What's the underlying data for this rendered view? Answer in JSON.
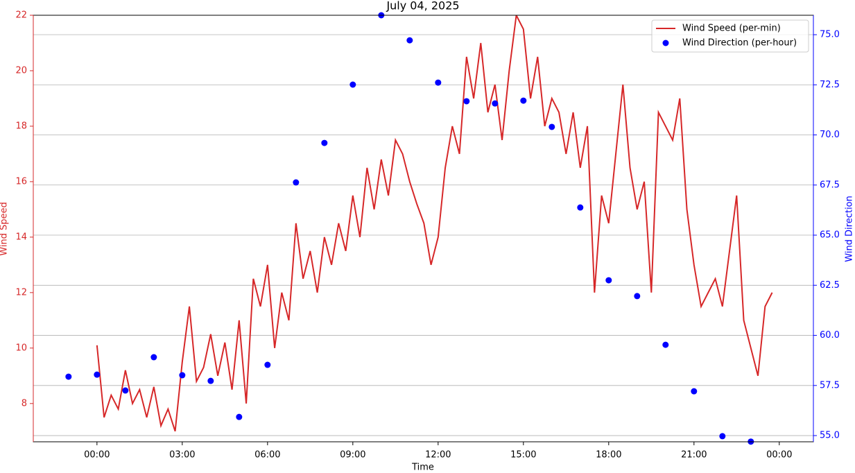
{
  "chart_data": {
    "type": "line",
    "title": "July 04, 2025",
    "x_label": "Time",
    "y_label": "Wind Speed",
    "y2_label": "Wind Direction",
    "xlim": [
      -2.24,
      25.2
    ],
    "xticks": [
      {
        "value": 0,
        "label": "00:00"
      },
      {
        "value": 3,
        "label": "03:00"
      },
      {
        "value": 6,
        "label": "06:00"
      },
      {
        "value": 9,
        "label": "09:00"
      },
      {
        "value": 12,
        "label": "12:00"
      },
      {
        "value": 15,
        "label": "15:00"
      },
      {
        "value": 18,
        "label": "18:00"
      },
      {
        "value": 21,
        "label": "21:00"
      },
      {
        "value": 24,
        "label": "00:00"
      }
    ],
    "ylim": [
      6.62,
      22
    ],
    "yticks": [
      8,
      10,
      12,
      14,
      16,
      18,
      20,
      22
    ],
    "y2lim": [
      54.69,
      75.97
    ],
    "y2ticks": [
      {
        "value": 55,
        "label": "55.0"
      },
      {
        "value": 57.5,
        "label": "57.5"
      },
      {
        "value": 60,
        "label": "60.0"
      },
      {
        "value": 62.5,
        "label": "62.5"
      },
      {
        "value": 65,
        "label": "65.0"
      },
      {
        "value": 67.5,
        "label": "67.5"
      },
      {
        "value": 70,
        "label": "70.0"
      },
      {
        "value": 72.5,
        "label": "72.5"
      },
      {
        "value": 75,
        "label": "75.0"
      }
    ],
    "grid": "y2",
    "legend": "upper right",
    "series": [
      {
        "name": "Wind Speed (per-min)",
        "color": "#d62728",
        "marker": "line",
        "x": [
          0,
          0.25,
          0.5,
          0.75,
          1,
          1.25,
          1.5,
          1.75,
          2,
          2.25,
          2.5,
          2.75,
          3,
          3.25,
          3.5,
          3.75,
          4,
          4.25,
          4.5,
          4.75,
          5,
          5.25,
          5.5,
          5.75,
          6,
          6.25,
          6.5,
          6.75,
          7,
          7.25,
          7.5,
          7.75,
          8,
          8.25,
          8.5,
          8.75,
          9,
          9.25,
          9.5,
          9.75,
          10,
          10.25,
          10.5,
          10.75,
          11,
          11.25,
          11.5,
          11.75,
          12,
          12.25,
          12.5,
          12.75,
          13,
          13.25,
          13.5,
          13.75,
          14,
          14.25,
          14.5,
          14.75,
          15,
          15.25,
          15.5,
          15.75,
          16,
          16.25,
          16.5,
          16.75,
          17,
          17.25,
          17.5,
          17.75,
          18,
          18.25,
          18.5,
          18.75,
          19,
          19.25,
          19.5,
          19.75,
          20,
          20.25,
          20.5,
          20.75,
          21,
          21.25,
          21.5,
          21.75,
          22,
          22.25,
          22.5,
          22.75,
          23,
          23.25,
          23.5,
          23.75
        ],
        "values": [
          10.1,
          7.5,
          8.3,
          7.8,
          9.2,
          8.0,
          8.5,
          7.5,
          8.6,
          7.2,
          7.8,
          7.0,
          9.5,
          11.5,
          8.8,
          9.3,
          10.5,
          9.0,
          10.2,
          8.5,
          11.0,
          8.0,
          12.5,
          11.5,
          13.0,
          10.0,
          12.0,
          11.0,
          14.5,
          12.5,
          13.5,
          12.0,
          14.0,
          13.0,
          14.5,
          13.5,
          15.5,
          14.0,
          16.5,
          15.0,
          16.8,
          15.5,
          17.5,
          17.0,
          16.0,
          15.2,
          14.5,
          13.0,
          14.0,
          16.5,
          18.0,
          17.0,
          20.5,
          19.0,
          21.0,
          18.5,
          19.5,
          17.5,
          20.0,
          22.0,
          21.5,
          19.0,
          20.5,
          18.0,
          19.0,
          18.5,
          17.0,
          18.5,
          16.5,
          18.0,
          12.0,
          15.5,
          14.5,
          17.0,
          19.5,
          16.5,
          15.0,
          16.0,
          12.0,
          18.5,
          18.0,
          17.5,
          19.0,
          15.0,
          13.0,
          11.5,
          12.0,
          12.5,
          11.5,
          13.5,
          15.5,
          11.0,
          10.0,
          9.0,
          11.5,
          12.0
        ]
      },
      {
        "name": "Wind Direction (per-hour)",
        "color": "#0000ff",
        "marker": "dot",
        "axis": "y2",
        "x": [
          -1,
          0,
          1,
          2,
          3,
          4,
          5,
          6,
          7,
          8,
          9,
          10,
          11,
          12,
          13,
          14,
          15,
          16,
          17,
          18,
          19,
          20,
          21,
          22,
          23
        ],
        "values": [
          57.94,
          58.04,
          57.25,
          58.91,
          58.01,
          57.73,
          55.93,
          58.53,
          67.63,
          69.6,
          72.51,
          75.97,
          74.72,
          72.61,
          71.68,
          71.57,
          71.71,
          70.4,
          66.38,
          62.75,
          61.96,
          59.53,
          57.21,
          54.97,
          54.7
        ]
      }
    ]
  }
}
